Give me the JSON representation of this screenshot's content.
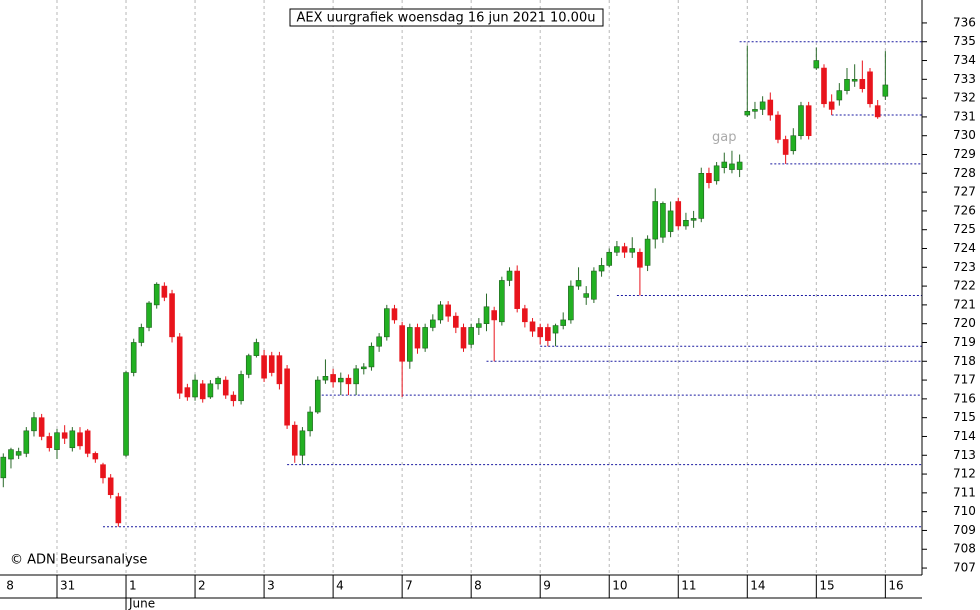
{
  "chart_data": {
    "type": "candlestick",
    "title": "AEX uurgrafiek woensdag 16 jun 2021 10.00u",
    "source": "© ADN Beursanalyse",
    "categories": [
      "8",
      null,
      null,
      null,
      null,
      null,
      null,
      "31",
      null,
      null,
      null,
      null,
      null,
      null,
      null,
      null,
      "1",
      null,
      null,
      null,
      null,
      null,
      null,
      null,
      null,
      "2",
      null,
      null,
      null,
      null,
      null,
      null,
      null,
      null,
      "3",
      null,
      null,
      null,
      null,
      null,
      null,
      null,
      null,
      "4",
      null,
      null,
      null,
      null,
      null,
      null,
      null,
      null,
      "7",
      null,
      null,
      null,
      null,
      null,
      null,
      null,
      null,
      "8",
      null,
      null,
      null,
      null,
      null,
      null,
      null,
      null,
      "9",
      null,
      null,
      null,
      null,
      null,
      null,
      null,
      null,
      "10",
      null,
      null,
      null,
      null,
      null,
      null,
      null,
      null,
      "11",
      null,
      null,
      null,
      null,
      null,
      null,
      null,
      null,
      "14",
      null,
      null,
      null,
      null,
      null,
      null,
      null,
      null,
      "15",
      null,
      null,
      null,
      null,
      null,
      null,
      null,
      null,
      "16"
    ],
    "month_labels": [
      {
        "label": "June",
        "category": 16
      }
    ],
    "open": [
      711.8,
      712.8,
      713.0,
      713.1,
      714.3,
      715.0,
      714.0,
      713.3,
      714.2,
      713.4,
      714.2,
      714.3,
      713.1,
      712.5,
      711.8,
      710.8,
      713.0,
      717.4,
      719.0,
      719.8,
      721.0,
      722.0,
      721.6,
      719.3,
      716.6,
      716.1,
      716.8,
      716.1,
      716.8,
      717.0,
      716.2,
      715.9,
      717.3,
      718.3,
      718.3,
      718.3,
      718.3,
      717.6,
      714.6,
      713.0,
      714.3,
      715.3,
      717.0,
      717.3,
      716.9,
      717.1,
      716.8,
      717.6,
      717.7,
      718.8,
      719.3,
      720.8,
      719.9,
      718.0,
      719.8,
      718.7,
      719.8,
      720.2,
      721.0,
      720.4,
      719.8,
      718.9,
      719.8,
      720.0,
      720.7,
      720.1,
      722.3,
      722.8,
      720.8,
      720.1,
      719.8,
      719.8,
      719.5,
      719.9,
      720.2,
      722.0,
      721.4,
      721.3,
      722.8,
      723.1,
      723.8,
      724.1,
      723.8,
      723.8,
      723.1,
      724.5,
      724.6,
      724.9,
      726.5,
      725.2,
      725.5,
      725.6,
      728.0,
      727.6,
      728.3,
      728.2,
      728.2,
      731.1,
      731.3,
      731.4,
      731.9,
      731.1,
      729.8,
      729.2,
      730.0,
      731.6,
      733.6,
      733.6,
      731.8,
      731.9,
      732.4,
      732.9,
      733.0,
      733.4,
      731.6,
      732.1
    ],
    "high": [
      713.1,
      713.4,
      713.4,
      714.5,
      715.3,
      715.2,
      714.2,
      714.4,
      714.6,
      714.5,
      714.5,
      714.4,
      713.2,
      712.6,
      712.0,
      711.0,
      717.5,
      719.2,
      720.0,
      721.2,
      722.2,
      722.2,
      721.8,
      719.5,
      716.8,
      717.3,
      717.0,
      717.0,
      717.2,
      717.2,
      716.4,
      717.5,
      718.4,
      719.2,
      718.6,
      718.5,
      718.5,
      717.8,
      714.8,
      714.5,
      715.6,
      717.2,
      718.1,
      717.6,
      717.4,
      717.3,
      717.8,
      717.9,
      719.0,
      719.5,
      721.0,
      721.0,
      720.1,
      720.0,
      720.0,
      720.0,
      720.5,
      721.2,
      721.2,
      720.6,
      720.0,
      720.0,
      720.3,
      721.6,
      720.9,
      722.5,
      723.0,
      723.1,
      721.0,
      720.3,
      720.0,
      720.0,
      720.0,
      720.6,
      722.3,
      723.0,
      722.0,
      723.0,
      723.5,
      724.0,
      724.4,
      724.3,
      724.6,
      724.0,
      724.7,
      727.2,
      726.5,
      726.5,
      726.7,
      725.9,
      726.0,
      728.3,
      728.3,
      728.6,
      729.1,
      729.2,
      729.0,
      734.8,
      731.8,
      732.1,
      732.3,
      731.3,
      730.0,
      730.4,
      731.8,
      731.8,
      734.7,
      733.8,
      732.2,
      732.8,
      733.6,
      733.8,
      734.0,
      733.6,
      731.9,
      734.5
    ],
    "low": [
      711.3,
      712.3,
      712.8,
      712.9,
      714.0,
      713.8,
      713.2,
      712.8,
      713.6,
      713.2,
      713.3,
      712.9,
      712.6,
      711.5,
      710.7,
      709.2,
      712.9,
      717.2,
      718.8,
      719.6,
      720.8,
      721.2,
      719.0,
      716.0,
      715.9,
      715.9,
      715.8,
      716.0,
      716.5,
      716.0,
      715.6,
      715.7,
      717.1,
      718.2,
      716.9,
      717.2,
      716.5,
      714.4,
      712.6,
      712.5,
      714.0,
      715.2,
      716.8,
      716.6,
      716.2,
      716.2,
      716.2,
      717.3,
      717.5,
      718.5,
      719.1,
      720.0,
      716.1,
      717.6,
      718.4,
      718.5,
      719.6,
      720.0,
      720.1,
      719.5,
      718.5,
      718.7,
      719.4,
      719.6,
      718.0,
      719.9,
      722.0,
      720.6,
      719.8,
      719.3,
      718.9,
      718.8,
      718.8,
      719.7,
      720.0,
      721.8,
      721.0,
      721.1,
      722.5,
      723.0,
      723.6,
      723.5,
      723.5,
      721.5,
      722.8,
      724.0,
      724.3,
      724.6,
      725.0,
      725.0,
      725.1,
      725.4,
      727.2,
      727.4,
      728.0,
      728.0,
      727.8,
      731.0,
      730.9,
      731.1,
      730.8,
      729.6,
      728.5,
      729.0,
      729.8,
      729.8,
      733.5,
      731.5,
      731.1,
      731.6,
      732.2,
      732.6,
      732.3,
      731.5,
      730.9,
      731.9
    ],
    "close": [
      712.9,
      713.3,
      713.2,
      714.3,
      715.0,
      714.0,
      713.4,
      714.2,
      713.9,
      714.3,
      713.5,
      713.1,
      712.8,
      711.8,
      710.9,
      709.4,
      717.4,
      719.0,
      719.8,
      721.1,
      722.1,
      721.4,
      719.3,
      716.3,
      716.1,
      717.0,
      716.0,
      716.8,
      717.1,
      716.2,
      715.9,
      717.3,
      718.3,
      719.0,
      717.1,
      717.4,
      716.8,
      714.6,
      713.0,
      714.3,
      715.3,
      717.0,
      717.2,
      716.9,
      717.1,
      716.8,
      717.6,
      717.7,
      718.8,
      719.3,
      720.8,
      720.2,
      718.0,
      719.8,
      718.7,
      719.8,
      720.2,
      721.0,
      720.4,
      719.8,
      718.7,
      719.8,
      720.0,
      720.9,
      720.2,
      722.3,
      722.8,
      720.8,
      720.1,
      719.6,
      719.3,
      719.1,
      719.9,
      720.2,
      722.0,
      722.3,
      721.6,
      722.8,
      723.1,
      723.8,
      724.1,
      723.8,
      724.0,
      723.0,
      724.5,
      726.5,
      726.4,
      726.0,
      725.2,
      725.5,
      725.6,
      728.0,
      727.5,
      728.4,
      728.6,
      728.5,
      728.6,
      731.3,
      731.4,
      731.8,
      731.1,
      729.8,
      729.0,
      730.0,
      731.6,
      730.0,
      734.0,
      731.7,
      731.4,
      732.4,
      733.0,
      733.0,
      732.5,
      731.7,
      731.0,
      732.7
    ],
    "up_color": "#22b022",
    "down_color": "#e8141c",
    "ylim": [
      706.63,
      737.22
    ],
    "yticks": [
      707,
      708,
      709,
      710,
      711,
      712,
      713,
      714,
      715,
      716,
      717,
      718,
      719,
      720,
      721,
      722,
      723,
      724,
      725,
      726,
      727,
      728,
      729,
      730,
      731,
      732,
      733,
      734,
      735,
      736
    ],
    "grid": true,
    "levels": [
      {
        "value": 735,
        "start": 96
      },
      {
        "value": 731.1,
        "start": 108
      },
      {
        "value": 728.5,
        "start": 100
      },
      {
        "value": 721.5,
        "start": 80
      },
      {
        "value": 718.8,
        "start": 70
      },
      {
        "value": 718,
        "start": 63
      },
      {
        "value": 716.2,
        "start": 41
      },
      {
        "value": 712.5,
        "start": 37
      },
      {
        "value": 709.2,
        "start": 13
      }
    ],
    "annotations": [
      {
        "text": "gap",
        "x": 94,
        "y": 729.9
      }
    ]
  }
}
